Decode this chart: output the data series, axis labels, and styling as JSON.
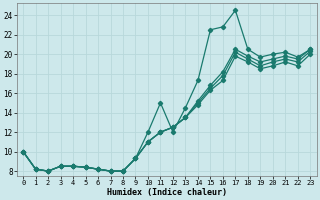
{
  "xlabel": "Humidex (Indice chaleur)",
  "ylabel": "",
  "xlim": [
    -0.5,
    23.5
  ],
  "ylim": [
    7.5,
    25.2
  ],
  "xticks": [
    0,
    1,
    2,
    3,
    4,
    5,
    6,
    7,
    8,
    9,
    10,
    11,
    12,
    13,
    14,
    15,
    16,
    17,
    18,
    19,
    20,
    21,
    22,
    23
  ],
  "yticks": [
    8,
    10,
    12,
    14,
    16,
    18,
    20,
    22,
    24
  ],
  "bg_color": "#cde8eb",
  "grid_color": "#b8d8db",
  "line_color": "#1a7a6e",
  "line1_x": [
    0,
    1,
    2,
    3,
    4,
    5,
    6,
    7,
    8,
    9,
    10,
    11,
    12,
    13,
    14,
    15,
    16,
    17,
    18,
    19,
    20,
    21,
    22,
    23
  ],
  "line1_y": [
    10.0,
    8.2,
    8.0,
    8.5,
    8.5,
    8.4,
    8.2,
    8.0,
    8.0,
    9.3,
    12.0,
    15.0,
    12.0,
    14.5,
    17.3,
    22.5,
    22.8,
    24.5,
    20.5,
    19.7,
    20.0,
    20.2,
    19.7,
    20.5
  ],
  "line2_x": [
    0,
    1,
    2,
    3,
    4,
    5,
    6,
    7,
    8,
    9,
    10,
    11,
    12,
    13,
    14,
    15,
    16,
    17,
    18,
    19,
    20,
    21,
    22,
    23
  ],
  "line2_y": [
    10.0,
    8.2,
    8.0,
    8.5,
    8.5,
    8.4,
    8.2,
    8.0,
    8.0,
    9.3,
    11.0,
    12.0,
    12.5,
    13.5,
    15.2,
    16.8,
    18.2,
    20.5,
    19.8,
    19.2,
    19.5,
    19.8,
    19.5,
    20.5
  ],
  "line3_x": [
    0,
    1,
    2,
    3,
    4,
    5,
    6,
    7,
    8,
    9,
    10,
    11,
    12,
    13,
    14,
    15,
    16,
    17,
    18,
    19,
    20,
    21,
    22,
    23
  ],
  "line3_y": [
    10.0,
    8.2,
    8.0,
    8.5,
    8.5,
    8.4,
    8.2,
    8.0,
    8.0,
    9.3,
    11.0,
    12.0,
    12.5,
    13.5,
    15.0,
    16.5,
    17.8,
    20.2,
    19.5,
    18.8,
    19.2,
    19.5,
    19.2,
    20.3
  ],
  "line4_x": [
    0,
    1,
    2,
    3,
    4,
    5,
    6,
    7,
    8,
    9,
    10,
    11,
    12,
    13,
    14,
    15,
    16,
    17,
    18,
    19,
    20,
    21,
    22,
    23
  ],
  "line4_y": [
    10.0,
    8.2,
    8.0,
    8.5,
    8.5,
    8.4,
    8.2,
    8.0,
    8.0,
    9.3,
    11.0,
    12.0,
    12.5,
    13.5,
    14.8,
    16.3,
    17.3,
    19.8,
    19.2,
    18.5,
    18.8,
    19.2,
    18.8,
    20.0
  ]
}
